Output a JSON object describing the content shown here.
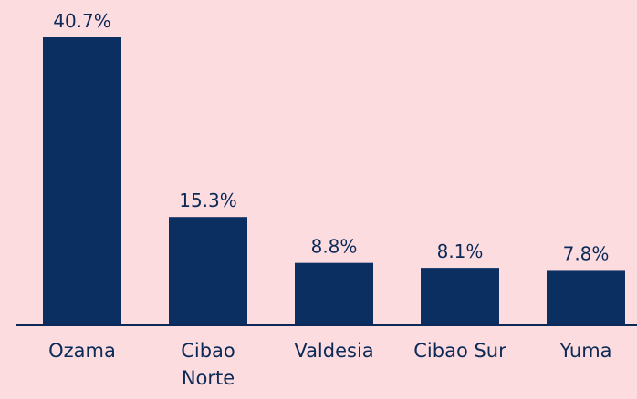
{
  "chart_data": {
    "type": "bar",
    "categories": [
      "Ozama",
      "Cibao Norte",
      "Valdesia",
      "Cibao Sur",
      "Yuma"
    ],
    "values": [
      40.7,
      15.3,
      8.8,
      8.1,
      7.8
    ],
    "value_labels": [
      "40.7%",
      "15.3%",
      "8.8%",
      "8.1%",
      "7.8%"
    ],
    "color": "#0b2f60"
  }
}
